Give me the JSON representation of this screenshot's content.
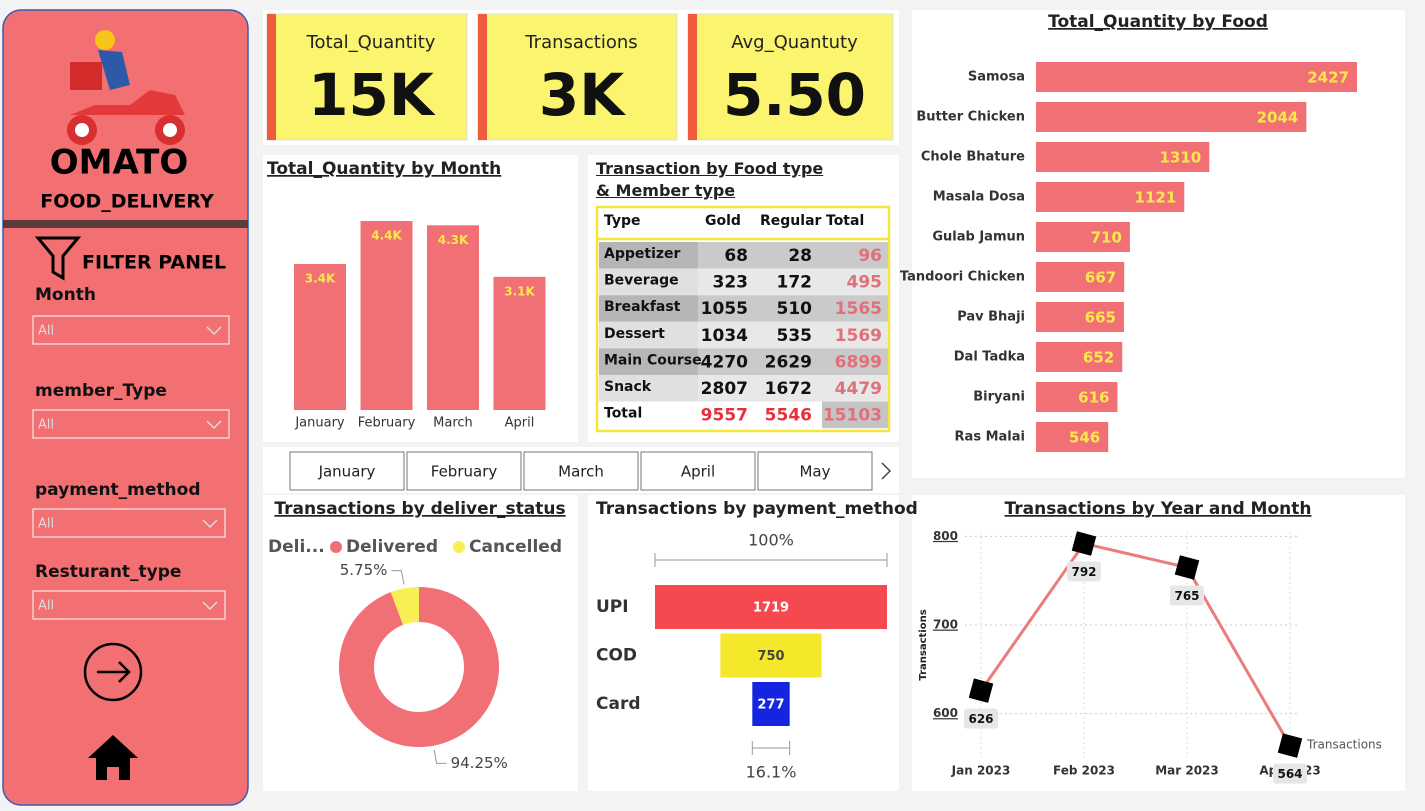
{
  "sidebar": {
    "brand": "OMATO",
    "subtitle": "FOOD_DELIVERY",
    "filter_title": "FILTER PANEL",
    "filters": [
      {
        "label": "Month",
        "value": "All"
      },
      {
        "label": "member_Type",
        "value": "All"
      },
      {
        "label": "payment_method",
        "value": "All"
      },
      {
        "label": "Resturant_type",
        "value": "All"
      }
    ]
  },
  "cards": [
    {
      "title": "Total_Quantity",
      "value": "15K"
    },
    {
      "title": "Transactions",
      "value": "3K"
    },
    {
      "title": "Avg_Quantuty",
      "value": "5.50"
    }
  ],
  "table": {
    "title": "Transaction by Food type & Member type",
    "header": [
      "Type",
      "Gold",
      "Regular",
      "Total"
    ],
    "rows": [
      [
        "Appetizer",
        68,
        28,
        96
      ],
      [
        "Beverage",
        323,
        172,
        495
      ],
      [
        "Breakfast",
        1055,
        510,
        1565
      ],
      [
        "Dessert",
        1034,
        535,
        1569
      ],
      [
        "Main Course",
        4270,
        2629,
        6899
      ],
      [
        "Snack",
        2807,
        1672,
        4479
      ],
      [
        "Total",
        9557,
        5546,
        15103
      ]
    ]
  },
  "month_slicer": [
    "January",
    "February",
    "March",
    "April",
    "May"
  ],
  "chart_data": [
    {
      "type": "bar",
      "orientation": "vertical",
      "title": "Total_Quantity by Month",
      "categories": [
        "January",
        "February",
        "March",
        "April"
      ],
      "values": [
        3400,
        4400,
        4300,
        3100
      ],
      "value_labels": [
        "3.4K",
        "4.4K",
        "4.3K",
        "3.1K"
      ],
      "color": "#f07075",
      "value_label_color": "#fbe94a"
    },
    {
      "type": "bar",
      "orientation": "horizontal",
      "title": "Total_Quantity by Food",
      "categories": [
        "Samosa",
        "Butter Chicken",
        "Chole Bhature",
        "Masala Dosa",
        "Gulab Jamun",
        "Tandoori Chicken",
        "Pav Bhaji",
        "Dal Tadka",
        "Biryani",
        "Ras Malai"
      ],
      "values": [
        2427,
        2044,
        1310,
        1121,
        710,
        667,
        665,
        652,
        616,
        546
      ],
      "color": "#f07075",
      "value_label_color": "#fbe94a"
    },
    {
      "type": "pie",
      "donut": true,
      "title": "Transactions by deliver_status",
      "legend_title": "Deli...",
      "categories": [
        "Delivered",
        "Cancelled"
      ],
      "values": [
        94.25,
        5.75
      ],
      "value_labels": [
        "94.25%",
        "5.75%"
      ],
      "colors": [
        "#f07075",
        "#f9ef55"
      ]
    },
    {
      "type": "funnel",
      "title": "Transactions by payment_method",
      "categories": [
        "UPI",
        "COD",
        "Card"
      ],
      "values": [
        1719,
        750,
        277
      ],
      "colors": [
        "#f5494f",
        "#f5e82a",
        "#1424e0"
      ],
      "top_label": {
        "value": 100,
        "label": "100%"
      },
      "bottom_label": {
        "value": 16.1,
        "label": "16.1%"
      }
    },
    {
      "type": "line",
      "title": "Transactions by Year and Month",
      "y_label": "Transactions",
      "categories": [
        "Jan 2023",
        "Feb 2023",
        "Mar 2023",
        "Apr 2023"
      ],
      "series": [
        {
          "name": "Transactions",
          "color": "#ec7b7b",
          "values": [
            626,
            792,
            765,
            564
          ]
        }
      ],
      "marker_color": "#000000",
      "ylim": [
        550,
        805
      ],
      "yticks": [
        600,
        700,
        800
      ],
      "grid": true,
      "legend": "bottom-right"
    }
  ]
}
